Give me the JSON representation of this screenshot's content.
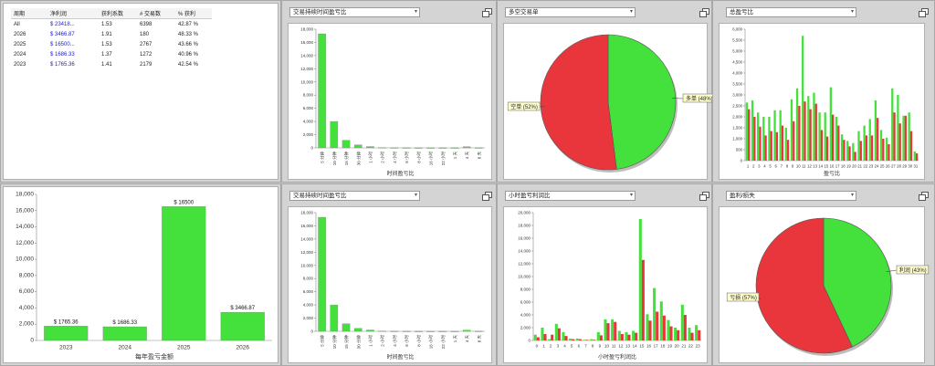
{
  "table": {
    "headers": [
      "周期",
      "净利润",
      "获利系数",
      "# 交易数",
      "% 获利"
    ],
    "rows": [
      [
        "All",
        "$ 23418...",
        "1.53",
        "6398",
        "42.87 %"
      ],
      [
        "2026",
        "$ 3466.87",
        "1.91",
        "180",
        "48.33 %"
      ],
      [
        "2025",
        "$ 16500...",
        "1.53",
        "2767",
        "43.66 %"
      ],
      [
        "2024",
        "$ 1686.33",
        "1.37",
        "1272",
        "40.96 %"
      ],
      [
        "2023",
        "$ 1765.36",
        "1.41",
        "2179",
        "42.54 %"
      ]
    ]
  },
  "dropdowns": {
    "p2": "交易持续时间盈亏比",
    "p3": "多空交易单",
    "p4": "总盈亏比",
    "p6": "交易持续时间盈亏比",
    "p7": "小时盈亏利润比",
    "p8": "盈利/损失"
  },
  "colors": {
    "green": "#44e03c",
    "red": "#e8363c"
  },
  "chart_data": [
    {
      "type": "bar",
      "id": "duration-top",
      "categories": [
        "5 分钟",
        "10 分钟",
        "15 分钟",
        "30 分钟",
        "1 小时",
        "2 小时",
        "4 小时",
        "6 小时",
        "8 小时",
        "16 小时",
        "22 小时",
        "1 天",
        "4 天",
        "8 天"
      ],
      "values": [
        17300,
        4000,
        1150,
        450,
        200,
        40,
        20,
        15,
        10,
        10,
        10,
        10,
        180,
        20
      ],
      "xlabel": "时间盈亏比",
      "ylim": [
        0,
        18000
      ],
      "yticks": [
        "0",
        "2,000",
        "4,000",
        "6,000",
        "8,000",
        "10,000",
        "12,000",
        "14,000",
        "16,000",
        "18,000"
      ]
    },
    {
      "type": "pie",
      "id": "long-short",
      "slices": [
        {
          "label": "多单 (48%)",
          "value": 48
        },
        {
          "label": "空单 (52%)",
          "value": 52
        }
      ]
    },
    {
      "type": "bar",
      "id": "total-pnl",
      "categories": [
        "1",
        "2",
        "3",
        "4",
        "5",
        "6",
        "7",
        "8",
        "9",
        "10",
        "11",
        "12",
        "13",
        "14",
        "15",
        "16",
        "17",
        "18",
        "19",
        "20",
        "21",
        "22",
        "23",
        "24",
        "25",
        "26",
        "27",
        "28",
        "29",
        "30",
        "31"
      ],
      "series": [
        {
          "values": [
            2650,
            2750,
            2200,
            2000,
            2000,
            2300,
            2300,
            1500,
            2800,
            3300,
            5700,
            2950,
            3100,
            2200,
            2200,
            3350,
            2000,
            1200,
            900,
            800,
            1350,
            1600,
            1900,
            2750,
            1400,
            1050,
            3300,
            3000,
            2050,
            2200,
            420
          ]
        },
        {
          "values": [
            2350,
            2000,
            1550,
            1150,
            1350,
            1300,
            1600,
            950,
            1800,
            2500,
            2700,
            2350,
            2600,
            1400,
            1100,
            2100,
            1600,
            950,
            650,
            400,
            900,
            1150,
            1150,
            1950,
            1000,
            750,
            2200,
            1700,
            2050,
            1350,
            330
          ]
        }
      ],
      "xlabel": "盈亏比",
      "ylim": [
        0,
        6000
      ],
      "yticks": [
        "0",
        "500",
        "1,000",
        "1,500",
        "2,000",
        "2,500",
        "3,000",
        "3,500",
        "4,000",
        "4,500",
        "5,000",
        "5,500",
        "6,000"
      ]
    },
    {
      "type": "bar",
      "id": "yearly",
      "categories": [
        "2023",
        "2024",
        "2025",
        "2026"
      ],
      "values": [
        1765.36,
        1686.33,
        16500,
        3466.87
      ],
      "data_labels": [
        "$ 1765.36",
        "$ 1686.33",
        "$ 16500",
        "$ 3466.87"
      ],
      "xlabel": "每年盈亏金额",
      "ylim": [
        0,
        18000
      ],
      "yticks": [
        "0",
        "2,000",
        "4,000",
        "6,000",
        "8,000",
        "10,000",
        "12,000",
        "14,000",
        "16,000",
        "18,000"
      ]
    },
    {
      "type": "bar",
      "id": "duration-bottom",
      "categories": [
        "5 分钟",
        "10 分钟",
        "15 分钟",
        "30 分钟",
        "1 小时",
        "2 小时",
        "4 小时",
        "6 小时",
        "8 小时",
        "16 小时",
        "22 小时",
        "1 天",
        "4 天",
        "8 天"
      ],
      "values": [
        17300,
        4000,
        1150,
        450,
        200,
        40,
        20,
        15,
        10,
        10,
        10,
        10,
        180,
        20
      ],
      "xlabel": "时间盈亏比",
      "ylim": [
        0,
        18000
      ],
      "yticks": [
        "0",
        "2,000",
        "4,000",
        "6,000",
        "8,000",
        "10,000",
        "12,000",
        "14,000",
        "16,000",
        "18,000"
      ]
    },
    {
      "type": "bar",
      "id": "hourly",
      "categories": [
        "0",
        "1",
        "2",
        "3",
        "4",
        "5",
        "6",
        "7",
        "8",
        "9",
        "10",
        "11",
        "12",
        "13",
        "14",
        "15",
        "16",
        "17",
        "18",
        "19",
        "20",
        "21",
        "22",
        "23"
      ],
      "series": [
        {
          "values": [
            900,
            2000,
            200,
            2600,
            1300,
            300,
            300,
            100,
            200,
            1300,
            3300,
            3300,
            1500,
            1300,
            1500,
            19000,
            4100,
            8200,
            6100,
            3200,
            2000,
            5600,
            2000,
            2400
          ]
        },
        {
          "values": [
            500,
            1000,
            900,
            1900,
            700,
            200,
            200,
            100,
            100,
            800,
            2700,
            2900,
            1000,
            900,
            1200,
            12600,
            3100,
            4500,
            3900,
            2200,
            1600,
            4000,
            1200,
            1600
          ]
        }
      ],
      "xlabel": "小时盈亏利润比",
      "ylim": [
        0,
        20000
      ],
      "yticks": [
        "0",
        "2,000",
        "4,000",
        "6,000",
        "8,000",
        "10,000",
        "12,000",
        "14,000",
        "16,000",
        "18,000",
        "20,000"
      ]
    },
    {
      "type": "pie",
      "id": "win-loss",
      "slices": [
        {
          "label": "利润 (43%)",
          "value": 43
        },
        {
          "label": "亏损 (57%)",
          "value": 57
        }
      ]
    }
  ]
}
